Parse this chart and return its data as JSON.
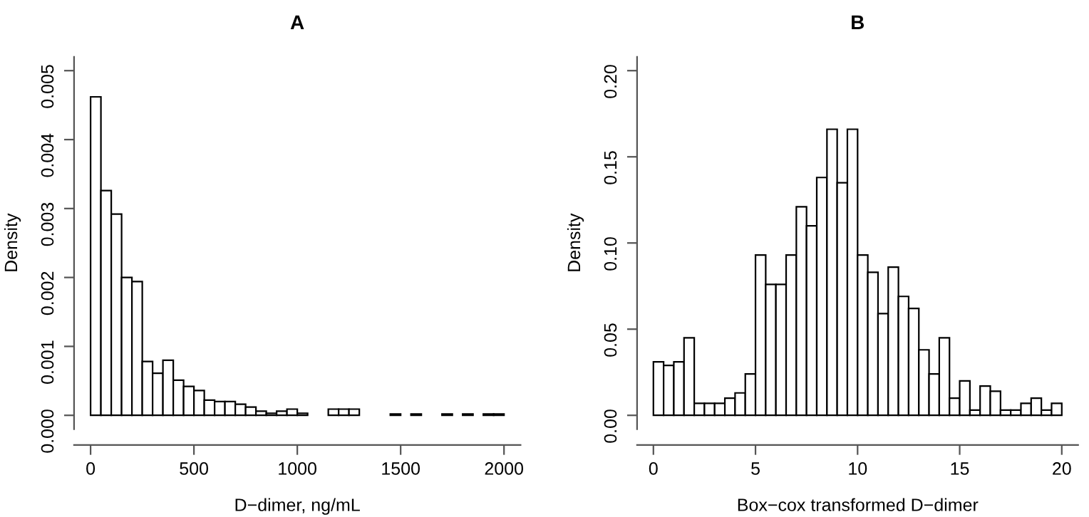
{
  "chart_data": [
    {
      "type": "histogram",
      "title": "A",
      "xlabel": "D−dimer, ng/mL",
      "ylabel": "Density",
      "color": "#ffffff",
      "bins": [
        0,
        50,
        100,
        150,
        200,
        250,
        300,
        350,
        400,
        450,
        500,
        550,
        600,
        650,
        700,
        750,
        800,
        850,
        900,
        950,
        1000,
        1050,
        1100,
        1150,
        1200,
        1250,
        1300,
        1350,
        1400,
        1450,
        1500,
        1550,
        1600,
        1650,
        1700,
        1750,
        1800,
        1850,
        1900,
        1950,
        2000
      ],
      "values": [
        0.00462,
        0.00326,
        0.00292,
        0.002,
        0.00194,
        0.00078,
        0.00061,
        0.0008,
        0.00051,
        0.00042,
        0.00036,
        0.00022,
        0.0002,
        0.0002,
        0.00016,
        0.00012,
        6e-05,
        3e-05,
        6e-05,
        9e-05,
        3e-05,
        0,
        0,
        9e-05,
        9e-05,
        9e-05,
        0,
        0,
        0,
        2e-05,
        0,
        2e-05,
        0,
        0,
        2e-05,
        0,
        2e-05,
        0,
        2e-05,
        2e-05
      ],
      "xlim": [
        -80,
        2080
      ],
      "ylim": [
        -0.0002,
        0.0052
      ],
      "xticks": [
        0,
        500,
        1000,
        1500,
        2000
      ],
      "yticks": [
        {
          "value": 0,
          "label": "0.000"
        },
        {
          "value": 0.001,
          "label": "0.001"
        },
        {
          "value": 0.002,
          "label": "0.002"
        },
        {
          "value": 0.003,
          "label": "0.003"
        },
        {
          "value": 0.004,
          "label": "0.004"
        },
        {
          "value": 0.005,
          "label": "0.005"
        }
      ],
      "grid": false,
      "legend": false
    },
    {
      "type": "histogram",
      "title": "B",
      "xlabel": "Box−cox transformed D−dimer",
      "ylabel": "Density",
      "color": "#ffffff",
      "bins": [
        0,
        0.5,
        1,
        1.5,
        2,
        2.5,
        3,
        3.5,
        4,
        4.5,
        5,
        5.5,
        6,
        6.5,
        7,
        7.5,
        8,
        8.5,
        9,
        9.5,
        10,
        10.5,
        11,
        11.5,
        12,
        12.5,
        13,
        13.5,
        14,
        14.5,
        15,
        15.5,
        16,
        16.5,
        17,
        17.5,
        18,
        18.5,
        19,
        19.5,
        20
      ],
      "values": [
        0.031,
        0.029,
        0.031,
        0.045,
        0.007,
        0.007,
        0.007,
        0.01,
        0.013,
        0.024,
        0.093,
        0.076,
        0.076,
        0.093,
        0.121,
        0.11,
        0.138,
        0.166,
        0.135,
        0.166,
        0.093,
        0.083,
        0.059,
        0.086,
        0.069,
        0.062,
        0.038,
        0.024,
        0.045,
        0.01,
        0.02,
        0.003,
        0.017,
        0.014,
        0.003,
        0.003,
        0.007,
        0.01,
        0.003,
        0.007
      ],
      "xlim": [
        -0.8,
        20.8
      ],
      "ylim": [
        -0.008,
        0.208
      ],
      "xticks": [
        0,
        5,
        10,
        15,
        20
      ],
      "yticks": [
        {
          "value": 0,
          "label": "0.00"
        },
        {
          "value": 0.05,
          "label": "0.05"
        },
        {
          "value": 0.1,
          "label": "0.10"
        },
        {
          "value": 0.15,
          "label": "0.15"
        },
        {
          "value": 0.2,
          "label": "0.20"
        }
      ],
      "grid": false,
      "legend": false
    }
  ]
}
